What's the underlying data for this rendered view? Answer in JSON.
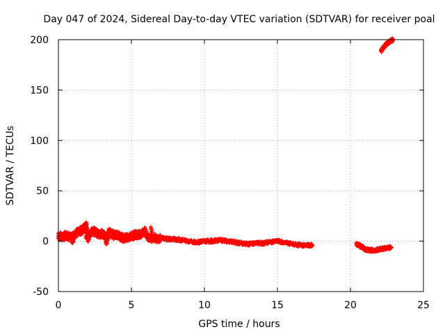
{
  "chart_data": {
    "type": "scatter",
    "title": "Day 047 of 2024, Sidereal Day-to-day VTEC variation (SDTVAR) for receiver poal",
    "xlabel": "GPS time / hours",
    "ylabel": "SDTVAR / TECUs",
    "xlim": [
      0,
      25
    ],
    "ylim": [
      -50,
      200
    ],
    "xticks": [
      0,
      5,
      10,
      15,
      20,
      25
    ],
    "yticks": [
      -50,
      0,
      50,
      100,
      150,
      200
    ],
    "grid": true,
    "marker": "+",
    "series_color": "#ff0000",
    "series": [
      {
        "name": "SDTVAR",
        "segments": [
          {
            "x": [
              0.0,
              0.3,
              0.6,
              0.9,
              1.2,
              1.5,
              1.7,
              1.9,
              2.0,
              2.2,
              2.5,
              2.8,
              3.0,
              3.3,
              3.5,
              3.8,
              4.0,
              4.3,
              4.6,
              5.0,
              5.3,
              5.6,
              5.9,
              6.2,
              6.5,
              7.0,
              7.5,
              8.0,
              8.5,
              9.0,
              9.5,
              10.0,
              10.5,
              11.0,
              11.5,
              12.0,
              12.5,
              13.0,
              13.5,
              14.0,
              14.5,
              15.0,
              15.5,
              16.0,
              16.5,
              17.0,
              17.4
            ],
            "y": [
              5,
              4,
              6,
              3,
              8,
              10,
              12,
              16,
              3,
              9,
              10,
              6,
              8,
              2,
              9,
              6,
              7,
              4,
              3,
              5,
              7,
              6,
              10,
              4,
              3,
              3,
              2,
              2,
              1,
              0,
              -1,
              0,
              0,
              1,
              0,
              -1,
              -2,
              -3,
              -2,
              -2,
              -1,
              0,
              -1,
              -3,
              -4,
              -4,
              -4
            ],
            "extent": [
              [
                1.9,
                16
              ],
              [
                1.0,
                -2
              ],
              [
                3.3,
                -3
              ],
              [
                5.5,
                10
              ],
              [
                6.4,
                14
              ]
            ]
          },
          {
            "x": [
              20.4,
              20.7,
              21.0,
              21.3,
              21.6,
              22.0,
              22.4,
              22.8
            ],
            "y": [
              -3,
              -5,
              -8,
              -9,
              -9,
              -8,
              -7,
              -6
            ]
          },
          {
            "x": [
              22.1,
              22.3,
              22.5,
              22.7,
              22.9
            ],
            "y": [
              189,
              193,
              196,
              198,
              200
            ]
          }
        ]
      }
    ]
  }
}
